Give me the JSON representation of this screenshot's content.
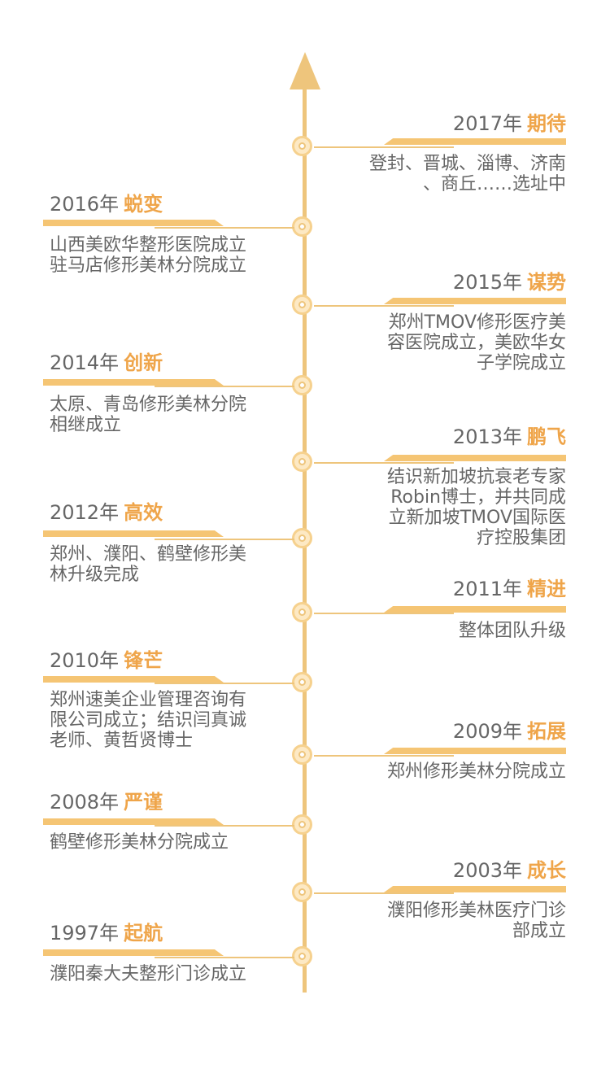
{
  "events": [
    {
      "year": "2017年",
      "keyword": "期待",
      "description": "登封、晋城、淄博、济南\n、商丘……选址中"
    },
    {
      "year": "2016年",
      "keyword": "蜕变",
      "description": "山西美欧华整形医院成立\n驻马店修形美林分院成立"
    },
    {
      "year": "2015年",
      "keyword": "谋势",
      "description": "郑州TMOV修形医疗美\n容医院成立，美欧华女\n子学院成立"
    },
    {
      "year": "2014年",
      "keyword": "创新",
      "description": "太原、青岛修形美林分院\n相继成立"
    },
    {
      "year": "2013年",
      "keyword": "鹏飞",
      "description": "结识新加坡抗衰老专家\nRobin博士，并共同成\n立新加坡TMOV国际医\n疗控股集团"
    },
    {
      "year": "2012年",
      "keyword": "高效",
      "description": "郑州、濮阳、鹤壁修形美\n林升级完成"
    },
    {
      "year": "2011年",
      "keyword": "精进",
      "description": "整体团队升级"
    },
    {
      "year": "2010年",
      "keyword": "锋芒",
      "description": "郑州速美企业管理咨询有\n限公司成立；结识闫真诚\n老师、黄哲贤博士"
    },
    {
      "year": "2009年",
      "keyword": "拓展",
      "description": "郑州修形美林分院成立"
    },
    {
      "year": "2008年",
      "keyword": "严谨",
      "description": "鹤壁修形美林分院成立"
    },
    {
      "year": "2003年",
      "keyword": "成长",
      "description": "濮阳修形美林医疗门诊\n部成立"
    },
    {
      "year": "1997年",
      "keyword": "起航",
      "description": "濮阳秦大夫整形门诊成立"
    }
  ]
}
